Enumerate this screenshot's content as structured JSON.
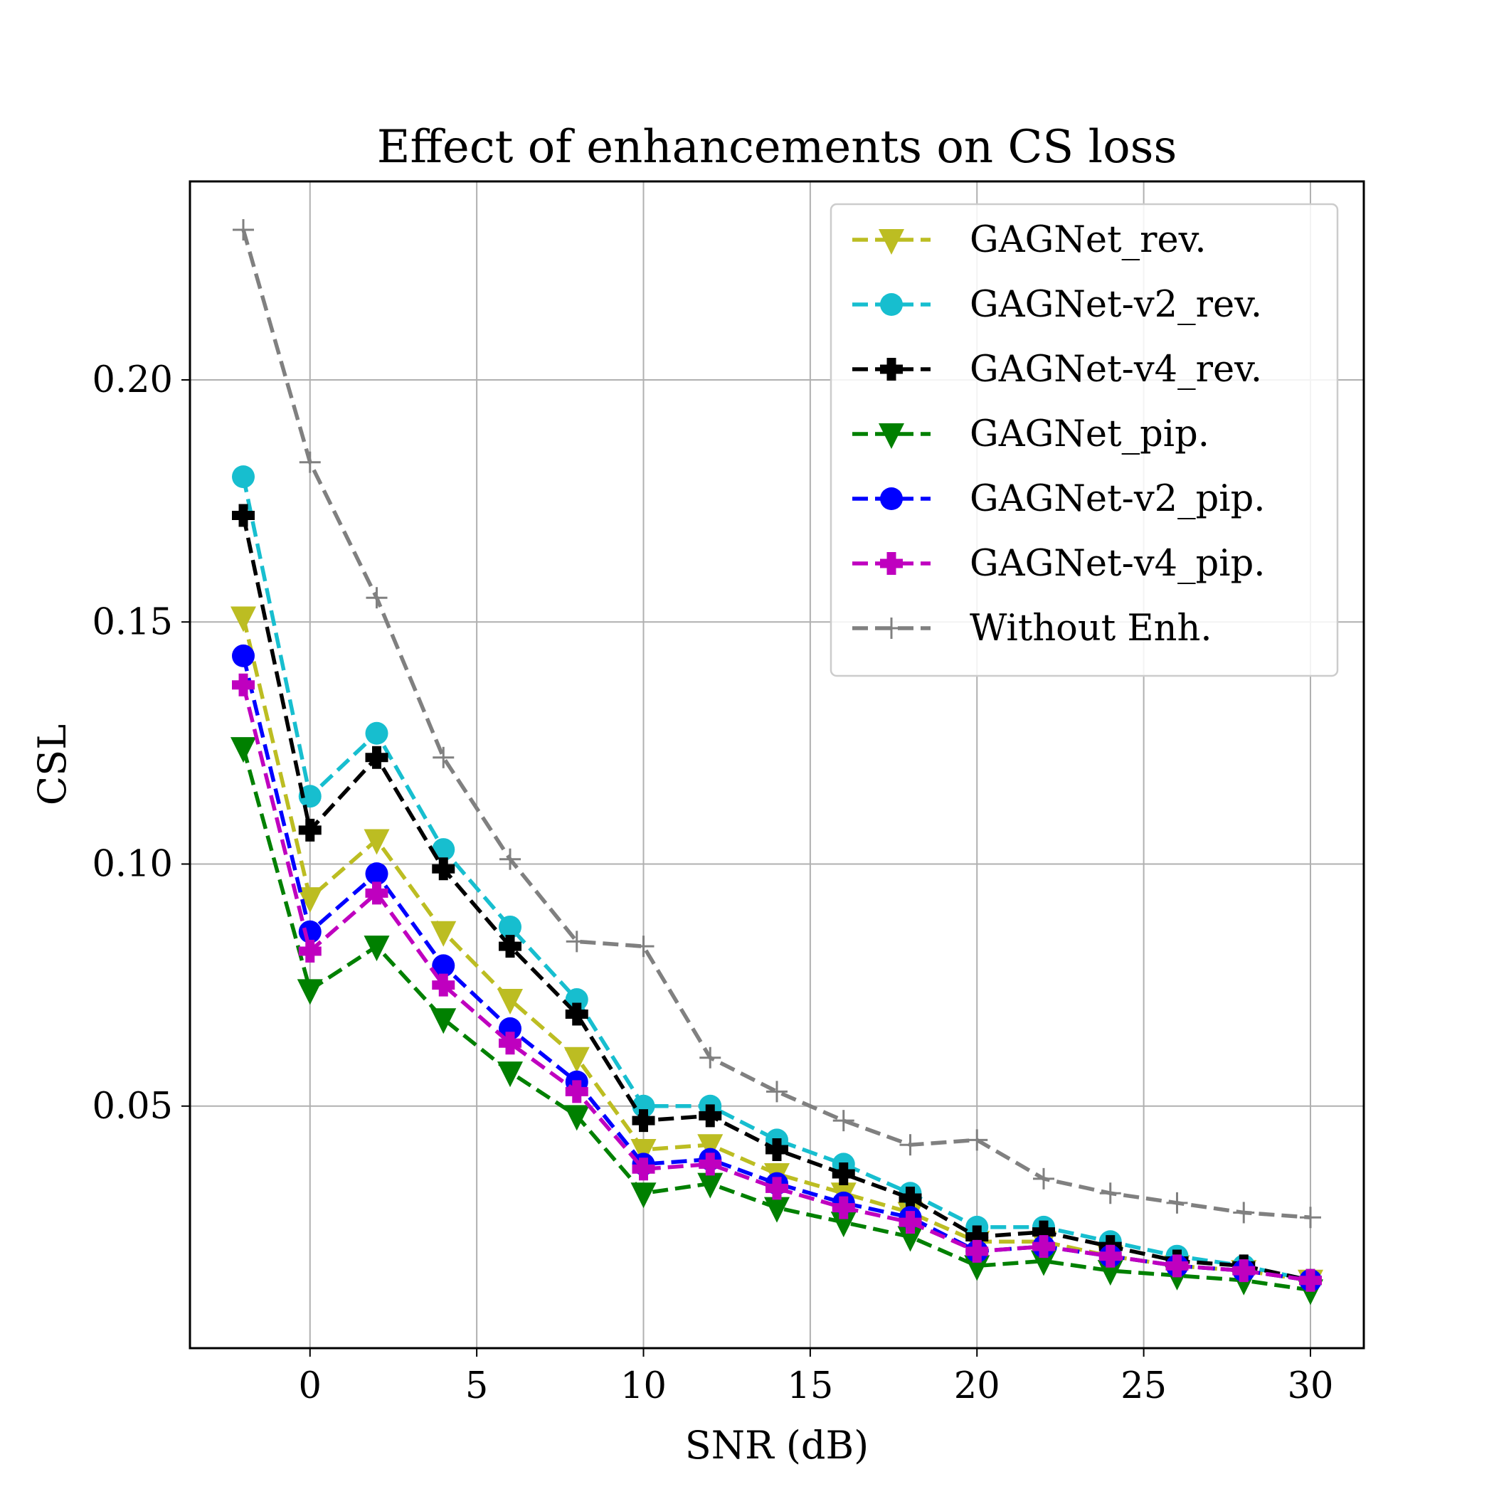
{
  "chart_data": {
    "type": "line",
    "title": "Effect of enhancements on CS loss",
    "xlabel": "SNR (dB)",
    "ylabel": "CSL",
    "xlim": [
      -3.6,
      31.6
    ],
    "ylim": [
      0.0,
      0.241
    ],
    "xticks": [
      0,
      5,
      10,
      15,
      20,
      25,
      30
    ],
    "xtick_labels": [
      "0",
      "5",
      "10",
      "15",
      "20",
      "25",
      "30"
    ],
    "yticks": [
      0.05,
      0.1,
      0.15,
      0.2
    ],
    "ytick_labels": [
      "0.05",
      "0.10",
      "0.15",
      "0.20"
    ],
    "grid": true,
    "legend_position": "top-right",
    "x": [
      -2,
      0,
      2,
      4,
      6,
      8,
      10,
      12,
      14,
      16,
      18,
      20,
      22,
      24,
      26,
      28,
      30
    ],
    "series": [
      {
        "name": "GAGNet_rev.",
        "color": "#bcbd22",
        "marker": "triangle-down",
        "values": [
          0.151,
          0.093,
          0.105,
          0.086,
          0.072,
          0.06,
          0.041,
          0.042,
          0.036,
          0.032,
          0.028,
          0.022,
          0.022,
          0.019,
          0.017,
          0.016,
          0.014
        ]
      },
      {
        "name": "GAGNet-v2_rev.",
        "color": "#17becf",
        "marker": "circle",
        "values": [
          0.18,
          0.114,
          0.127,
          0.103,
          0.087,
          0.072,
          0.05,
          0.05,
          0.043,
          0.038,
          0.032,
          0.025,
          0.025,
          0.022,
          0.019,
          0.017,
          0.014
        ]
      },
      {
        "name": "GAGNet-v4_rev.",
        "color": "#000000",
        "marker": "plus-filled",
        "values": [
          0.172,
          0.107,
          0.122,
          0.099,
          0.083,
          0.069,
          0.047,
          0.048,
          0.041,
          0.036,
          0.031,
          0.023,
          0.024,
          0.021,
          0.018,
          0.017,
          0.014
        ]
      },
      {
        "name": "GAGNet_pip.",
        "color": "#008000",
        "marker": "triangle-down",
        "values": [
          0.124,
          0.074,
          0.083,
          0.068,
          0.057,
          0.048,
          0.032,
          0.034,
          0.029,
          0.026,
          0.023,
          0.017,
          0.018,
          0.016,
          0.015,
          0.014,
          0.012
        ]
      },
      {
        "name": "GAGNet-v2_pip.",
        "color": "#0000ff",
        "marker": "circle",
        "values": [
          0.143,
          0.086,
          0.098,
          0.079,
          0.066,
          0.055,
          0.038,
          0.039,
          0.034,
          0.03,
          0.027,
          0.02,
          0.021,
          0.019,
          0.017,
          0.016,
          0.014
        ]
      },
      {
        "name": "GAGNet-v4_pip.",
        "color": "#bf00bf",
        "marker": "plus-filled",
        "values": [
          0.137,
          0.082,
          0.094,
          0.075,
          0.063,
          0.053,
          0.037,
          0.038,
          0.033,
          0.029,
          0.026,
          0.02,
          0.021,
          0.019,
          0.017,
          0.016,
          0.014
        ]
      },
      {
        "name": "Without Enh.",
        "color": "#808080",
        "marker": "plus-thin",
        "values": [
          0.231,
          0.183,
          0.155,
          0.122,
          0.101,
          0.084,
          0.083,
          0.06,
          0.053,
          0.047,
          0.042,
          0.043,
          0.035,
          0.032,
          0.03,
          0.028,
          0.027
        ]
      }
    ]
  }
}
